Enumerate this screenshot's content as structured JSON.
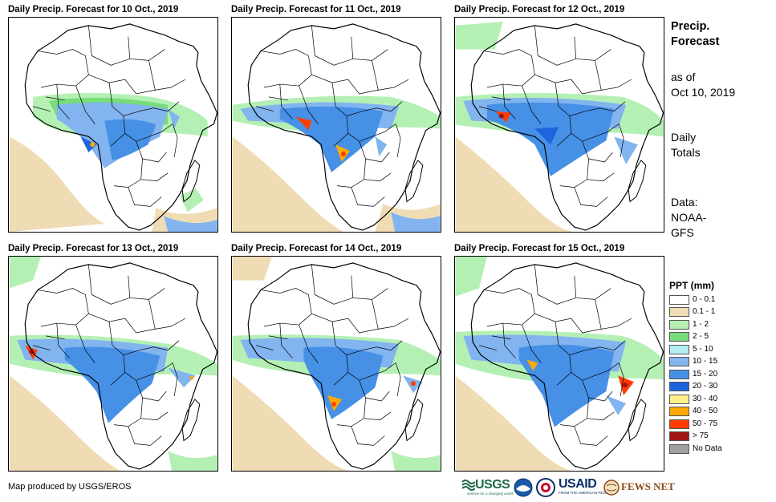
{
  "panels": [
    {
      "title": "Daily Precip. Forecast for 10 Oct., 2019"
    },
    {
      "title": "Daily Precip. Forecast for 11 Oct., 2019"
    },
    {
      "title": "Daily Precip. Forecast for 12 Oct., 2019"
    },
    {
      "title": "Daily Precip. Forecast for 13 Oct., 2019"
    },
    {
      "title": "Daily Precip. Forecast for 14 Oct., 2019"
    },
    {
      "title": "Daily Precip. Forecast for 15 Oct., 2019"
    }
  ],
  "side": {
    "title_line1": "Precip.",
    "title_line2": "Forecast",
    "asof_line1": "as of",
    "asof_line2": "Oct 10, 2019",
    "totals_line1": "Daily",
    "totals_line2": "Totals",
    "data_line1": "Data:",
    "data_line2": "NOAA-",
    "data_line3": "GFS"
  },
  "legend": {
    "title": "PPT (mm)",
    "items": [
      {
        "label": "0 - 0.1",
        "color": "#ffffff"
      },
      {
        "label": "0.1 - 1",
        "color": "#efdcb4"
      },
      {
        "label": "1 - 2",
        "color": "#b4f0b4"
      },
      {
        "label": "2 - 5",
        "color": "#78dc78"
      },
      {
        "label": "5 - 10",
        "color": "#b4ecf4"
      },
      {
        "label": "10 - 15",
        "color": "#82b4f0"
      },
      {
        "label": "15 - 20",
        "color": "#4690e6"
      },
      {
        "label": "20 - 30",
        "color": "#1e64dc"
      },
      {
        "label": "30 - 40",
        "color": "#fff08c"
      },
      {
        "label": "40 - 50",
        "color": "#ffaa00"
      },
      {
        "label": "50 - 75",
        "color": "#ff3c00"
      },
      {
        "label": "> 75",
        "color": "#a01414"
      },
      {
        "label": "No Data",
        "color": "#a0a0a0"
      }
    ]
  },
  "credit": "Map produced by USGS/EROS",
  "logos": {
    "usgs": "USGS",
    "usgs_tagline": "science for a changing world",
    "usaid": "USAID",
    "usaid_tagline": "FROM THE AMERICAN PEOPLE",
    "fews": "FEWS NET"
  }
}
